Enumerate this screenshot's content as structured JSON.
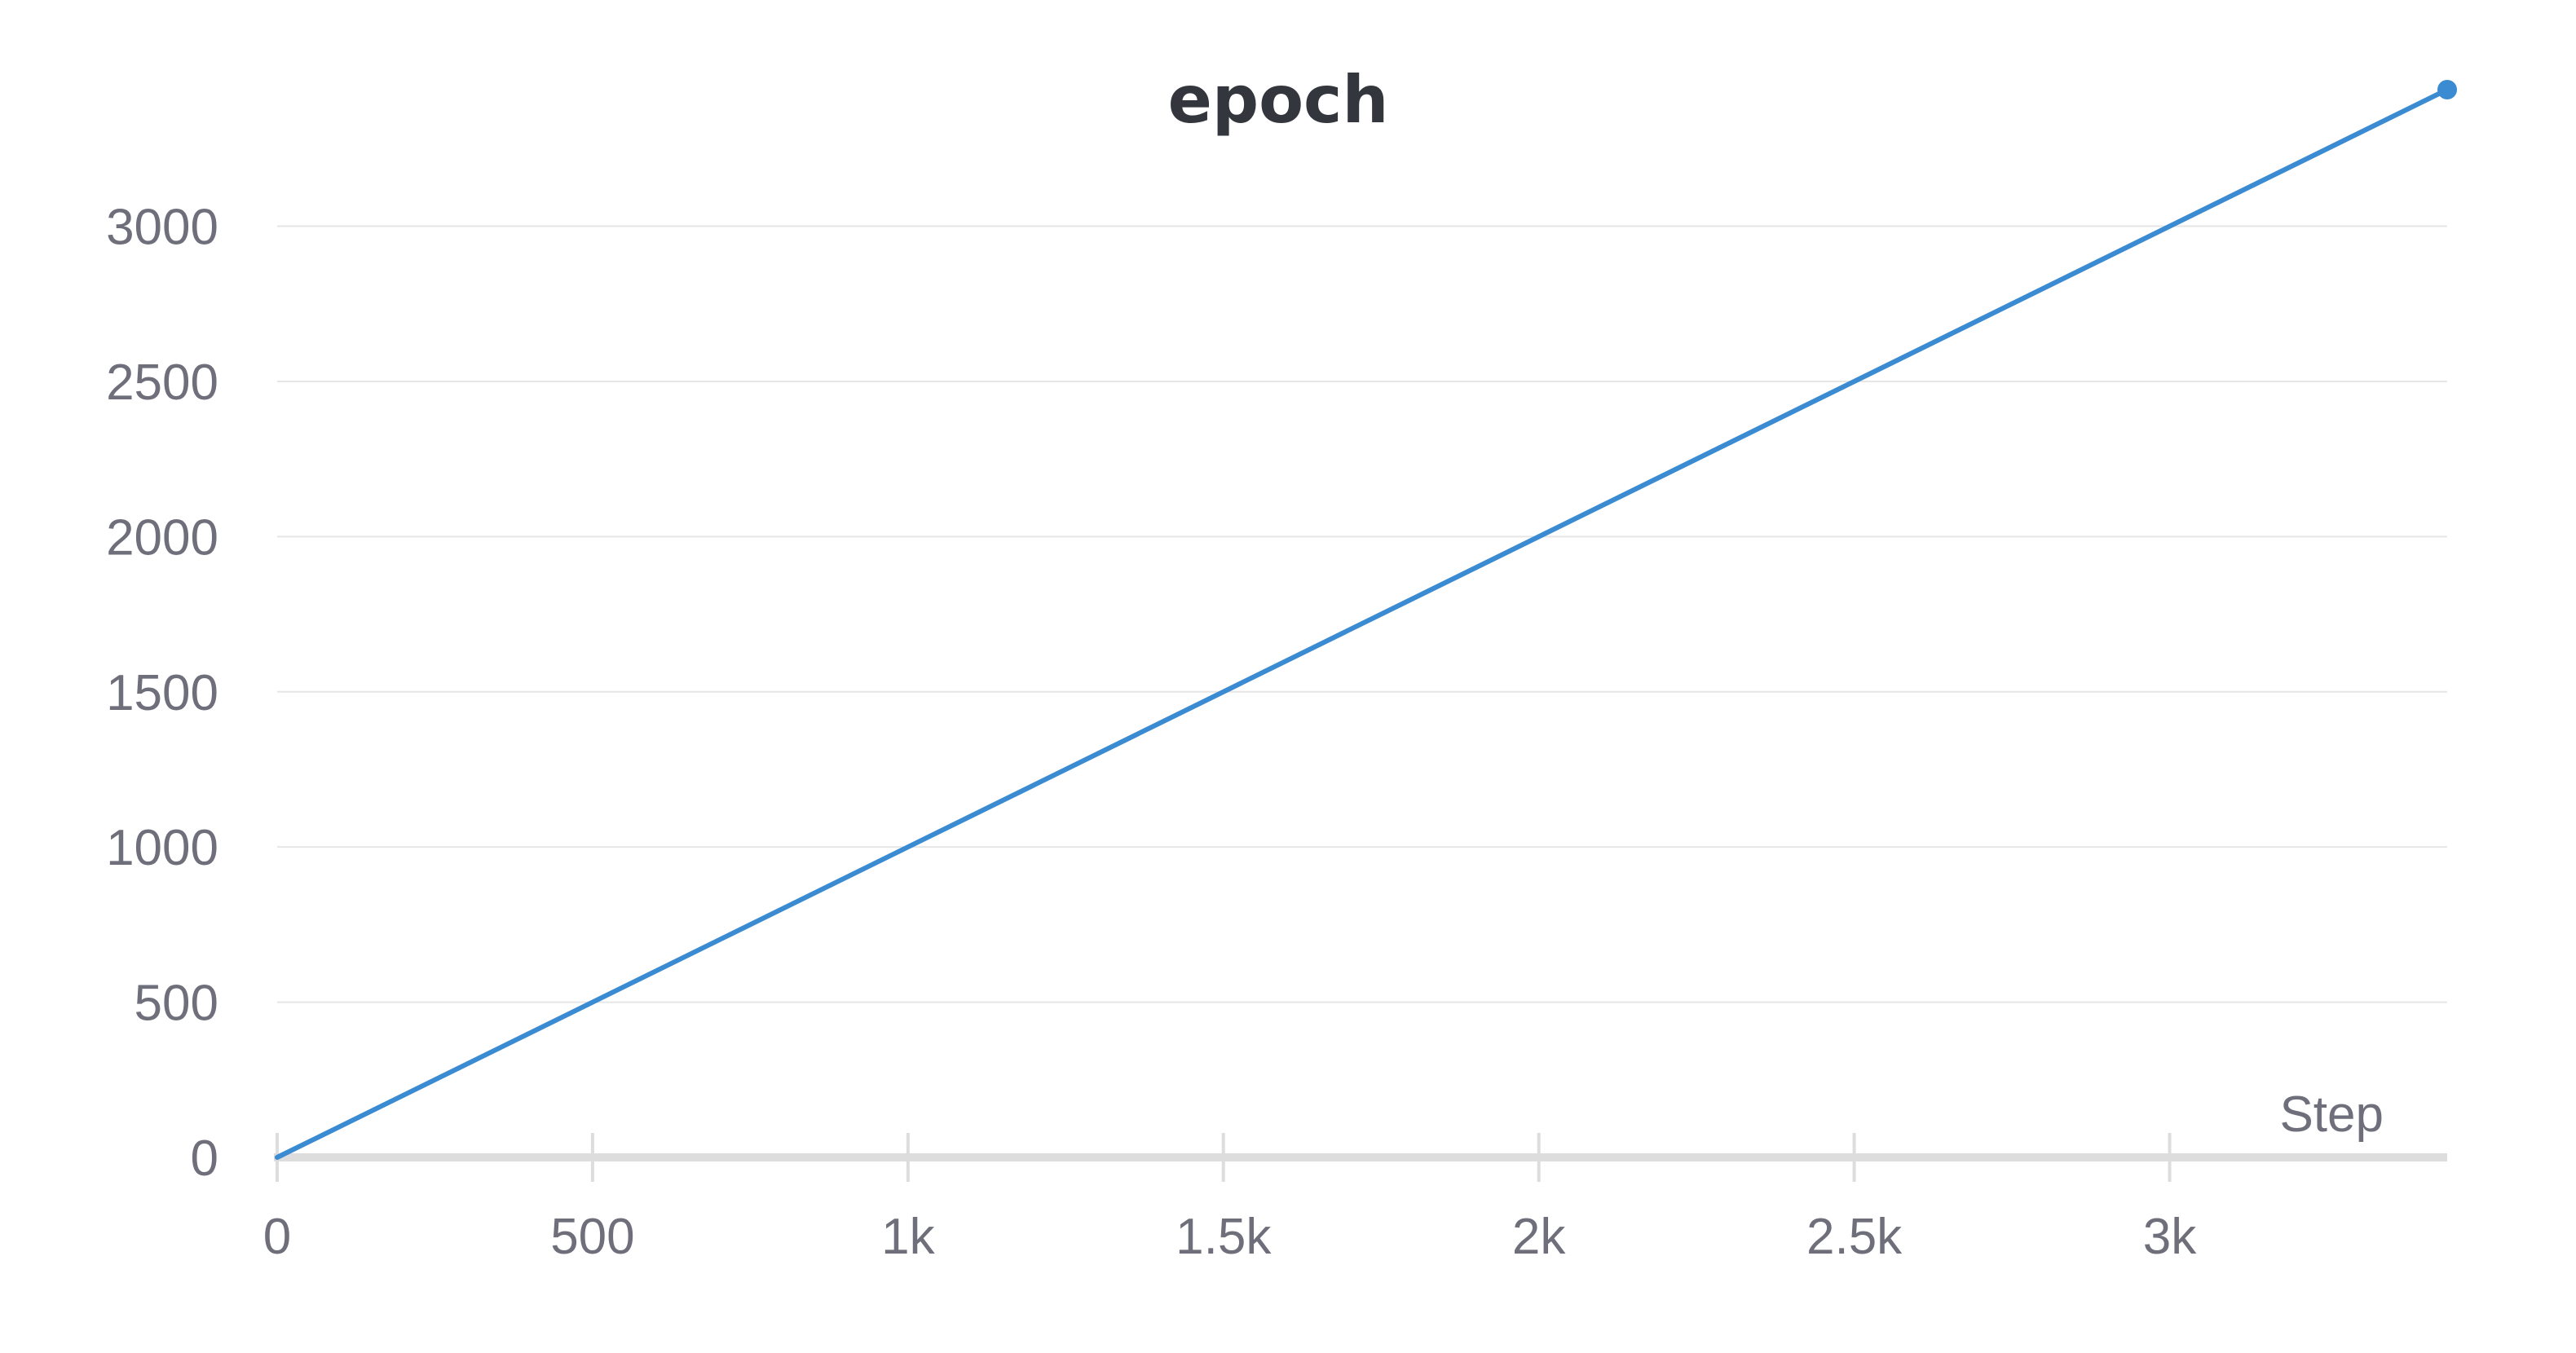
{
  "chart_data": {
    "type": "line",
    "title": "epoch",
    "xlabel": "Step",
    "ylabel": "",
    "xlim": [
      0,
      3440
    ],
    "ylim": [
      0,
      3440
    ],
    "x_ticks": [
      0,
      500,
      1000,
      1500,
      2000,
      2500,
      3000
    ],
    "x_tick_labels": [
      "0",
      "500",
      "1k",
      "1.5k",
      "2k",
      "2.5k",
      "3k"
    ],
    "y_ticks": [
      0,
      500,
      1000,
      1500,
      2000,
      2500,
      3000
    ],
    "y_tick_labels": [
      "0",
      "500",
      "1000",
      "1500",
      "2000",
      "2500",
      "3000"
    ],
    "grid": true,
    "legend": "none",
    "color": "#3a8bd1",
    "series": [
      {
        "x": [
          0,
          3440
        ],
        "y": [
          0,
          3440
        ]
      }
    ]
  }
}
